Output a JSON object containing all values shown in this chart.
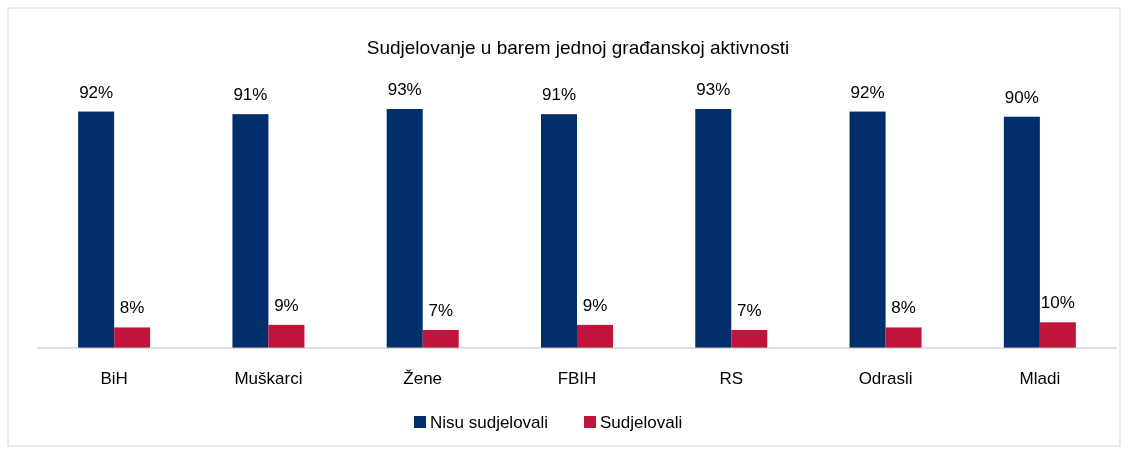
{
  "chart_data": {
    "type": "bar",
    "title": "Sudjelovanje u barem jednoj građanskoj aktivnosti",
    "categories": [
      "BiH",
      "Muškarci",
      "Žene",
      "FBIH",
      "RS",
      "Odrasli",
      "Mladi"
    ],
    "series": [
      {
        "name": "Nisu sudjelovali",
        "color": "#002f6c",
        "values": [
          92,
          91,
          93,
          91,
          93,
          92,
          90
        ],
        "value_labels": [
          "92%",
          "91%",
          "93%",
          "91%",
          "93%",
          "92%",
          "90%"
        ]
      },
      {
        "name": "Sudjelovali",
        "color": "#c0143c",
        "values": [
          8,
          9,
          7,
          9,
          7,
          8,
          10
        ],
        "value_labels": [
          "8%",
          "9%",
          "7%",
          "9%",
          "7%",
          "8%",
          "10%"
        ]
      }
    ],
    "legend": "bottom"
  }
}
